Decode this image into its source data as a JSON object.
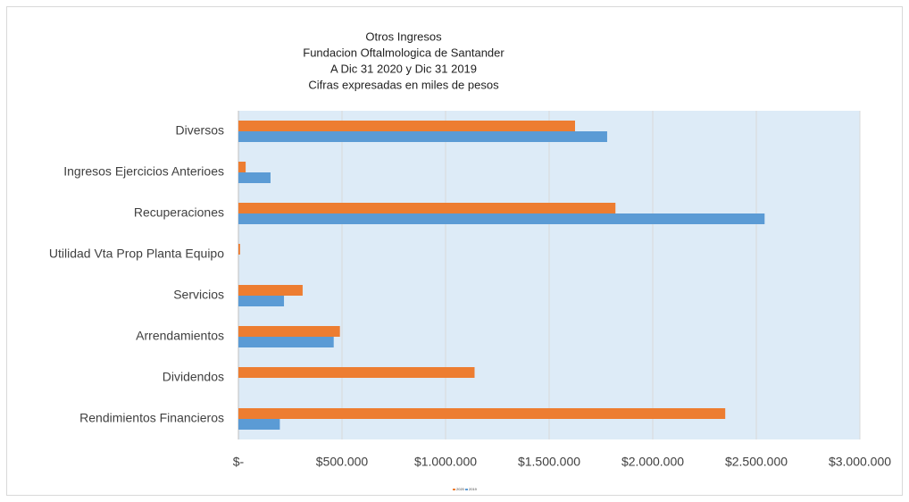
{
  "chart_data": {
    "type": "hbar",
    "title": [
      "Otros Ingresos",
      "Fundacion Oftalmologica de Santander",
      "A Dic 31 2020 y Dic 31 2019",
      "Cifras expresadas en miles de pesos"
    ],
    "categories": [
      "Diversos",
      "Ingresos Ejercicios Anterioes",
      "Recuperaciones",
      "Utilidad Vta Prop Planta Equipo",
      "Servicios",
      "Arrendamientos",
      "Dividendos",
      "Rendimientos Financieros"
    ],
    "series": [
      {
        "name": "2020",
        "color": "#ed7d31",
        "values": [
          1625000,
          35000,
          1820000,
          8000,
          310000,
          490000,
          1140000,
          2350000
        ]
      },
      {
        "name": "2019",
        "color": "#5b9bd5",
        "values": [
          1780000,
          155000,
          2540000,
          0,
          220000,
          460000,
          0,
          200000
        ]
      }
    ],
    "xlim": [
      0,
      3000000
    ],
    "xticks": [
      {
        "value": 0,
        "label": "$-"
      },
      {
        "value": 500000,
        "label": "$500.000"
      },
      {
        "value": 1000000,
        "label": "$1.000.000"
      },
      {
        "value": 1500000,
        "label": "$1.500.000"
      },
      {
        "value": 2000000,
        "label": "$2.000.000"
      },
      {
        "value": 2500000,
        "label": "$2.500.000"
      },
      {
        "value": 3000000,
        "label": "$3.000.000"
      }
    ],
    "grid": true,
    "legend": "bottom"
  }
}
